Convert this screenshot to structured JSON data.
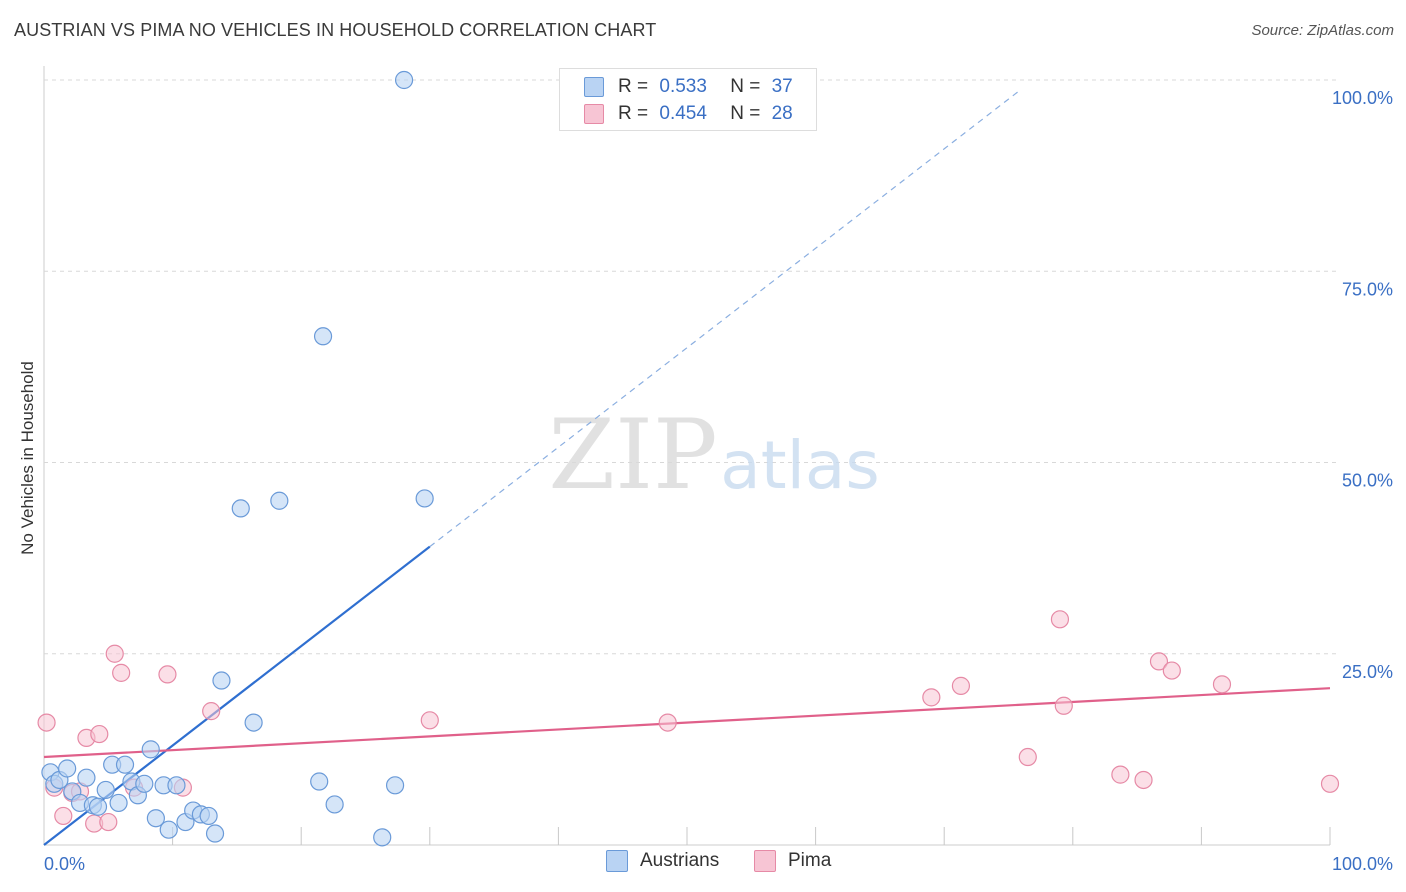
{
  "title": "AUSTRIAN VS PIMA NO VEHICLES IN HOUSEHOLD CORRELATION CHART",
  "source": "Source: ZipAtlas.com",
  "watermark": {
    "zip": "ZIP",
    "atlas": "atlas"
  },
  "legend": {
    "row1": {
      "r_label": "R =",
      "r_value": "0.533",
      "n_label": "N =",
      "n_value": "37"
    },
    "row2": {
      "r_label": "R =",
      "r_value": "0.454",
      "n_label": "N =",
      "n_value": "28"
    }
  },
  "bottom_legend": {
    "austrians": "Austrians",
    "pima": "Pima"
  },
  "colors": {
    "austrians_fill": "#b9d3f3",
    "austrians_stroke": "#6a9ad8",
    "austrians_line": "#2f6fd0",
    "pima_fill": "#f7c5d4",
    "pima_stroke": "#e68aa6",
    "pima_line": "#e0608a",
    "tick_label": "#3a6fc4",
    "grid": "#d8d8d8"
  },
  "chart_data": {
    "type": "scatter",
    "title": "AUSTRIAN VS PIMA NO VEHICLES IN HOUSEHOLD CORRELATION CHART",
    "xlabel": "",
    "ylabel": "No Vehicles in Household",
    "xlim": [
      0,
      100
    ],
    "ylim": [
      0,
      100
    ],
    "x_tick_labels": [
      "0.0%",
      "100.0%"
    ],
    "y_ticks": [
      25,
      50,
      75,
      100
    ],
    "y_tick_labels": [
      "25.0%",
      "50.0%",
      "75.0%",
      "100.0%"
    ],
    "series": [
      {
        "name": "Austrians",
        "R": 0.533,
        "N": 37,
        "trend": {
          "x0": 0,
          "y0": 0,
          "x1": 30,
          "y1": 39,
          "dashed_to_x": 76
        },
        "points": [
          [
            0.5,
            9.5
          ],
          [
            0.8,
            8.0
          ],
          [
            1.2,
            8.5
          ],
          [
            1.8,
            10.0
          ],
          [
            2.2,
            7.0
          ],
          [
            2.8,
            5.5
          ],
          [
            3.3,
            8.8
          ],
          [
            3.8,
            5.2
          ],
          [
            4.2,
            5.0
          ],
          [
            4.8,
            7.2
          ],
          [
            5.3,
            10.5
          ],
          [
            5.8,
            5.5
          ],
          [
            6.3,
            10.5
          ],
          [
            6.8,
            8.3
          ],
          [
            7.3,
            6.5
          ],
          [
            7.8,
            8.0
          ],
          [
            8.3,
            12.5
          ],
          [
            8.7,
            3.5
          ],
          [
            9.3,
            7.8
          ],
          [
            9.7,
            2.0
          ],
          [
            10.3,
            7.8
          ],
          [
            11.0,
            3.0
          ],
          [
            11.6,
            4.5
          ],
          [
            12.2,
            4.0
          ],
          [
            12.8,
            3.8
          ],
          [
            13.3,
            1.5
          ],
          [
            13.8,
            21.5
          ],
          [
            16.3,
            16.0
          ],
          [
            15.3,
            44.0
          ],
          [
            18.3,
            45.0
          ],
          [
            21.4,
            8.3
          ],
          [
            22.6,
            5.3
          ],
          [
            21.7,
            66.5
          ],
          [
            26.3,
            1.0
          ],
          [
            27.3,
            7.8
          ],
          [
            29.6,
            45.3
          ],
          [
            28.0,
            100.0
          ]
        ]
      },
      {
        "name": "Pima",
        "R": 0.454,
        "N": 28,
        "trend": {
          "x0": 0,
          "y0": 11.5,
          "x1": 100,
          "y1": 20.5
        },
        "points": [
          [
            0.2,
            16.0
          ],
          [
            0.8,
            7.5
          ],
          [
            1.5,
            3.8
          ],
          [
            2.2,
            6.8
          ],
          [
            2.8,
            7.0
          ],
          [
            3.3,
            14.0
          ],
          [
            3.9,
            2.8
          ],
          [
            4.3,
            14.5
          ],
          [
            5.0,
            3.0
          ],
          [
            5.5,
            25.0
          ],
          [
            6.0,
            22.5
          ],
          [
            7.0,
            7.5
          ],
          [
            9.6,
            22.3
          ],
          [
            10.8,
            7.5
          ],
          [
            13.0,
            17.5
          ],
          [
            30.0,
            16.3
          ],
          [
            48.5,
            16.0
          ],
          [
            69.0,
            19.3
          ],
          [
            71.3,
            20.8
          ],
          [
            76.5,
            11.5
          ],
          [
            79.0,
            29.5
          ],
          [
            79.3,
            18.2
          ],
          [
            83.7,
            9.2
          ],
          [
            85.5,
            8.5
          ],
          [
            86.7,
            24.0
          ],
          [
            87.7,
            22.8
          ],
          [
            91.6,
            21.0
          ],
          [
            100.0,
            8.0
          ]
        ]
      }
    ]
  }
}
